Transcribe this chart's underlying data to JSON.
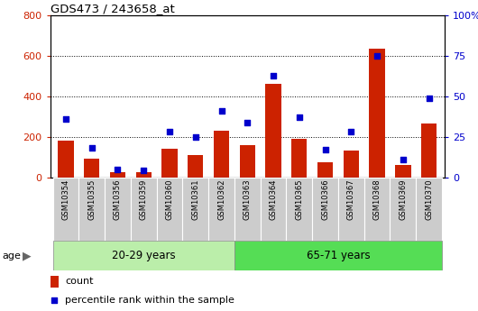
{
  "title": "GDS473 / 243658_at",
  "samples": [
    "GSM10354",
    "GSM10355",
    "GSM10356",
    "GSM10359",
    "GSM10360",
    "GSM10361",
    "GSM10362",
    "GSM10363",
    "GSM10364",
    "GSM10365",
    "GSM10366",
    "GSM10367",
    "GSM10368",
    "GSM10369",
    "GSM10370"
  ],
  "counts": [
    180,
    90,
    25,
    25,
    140,
    110,
    230,
    160,
    460,
    190,
    75,
    130,
    635,
    60,
    265
  ],
  "percentiles": [
    36,
    18,
    5,
    4,
    28,
    25,
    41,
    34,
    63,
    37,
    17,
    28,
    75,
    11,
    49
  ],
  "group1_label": "20-29 years",
  "group2_label": "65-71 years",
  "group1_count": 7,
  "group2_count": 8,
  "age_label": "age",
  "bar_color": "#cc2200",
  "dot_color": "#0000cc",
  "group1_bg": "#bbeeaa",
  "group2_bg": "#55dd55",
  "tick_label_bg": "#cccccc",
  "ylim_left": [
    0,
    800
  ],
  "ylim_right": [
    0,
    100
  ],
  "yticks_left": [
    0,
    200,
    400,
    600,
    800
  ],
  "yticks_right": [
    0,
    25,
    50,
    75,
    100
  ],
  "legend_count_label": "count",
  "legend_pct_label": "percentile rank within the sample"
}
